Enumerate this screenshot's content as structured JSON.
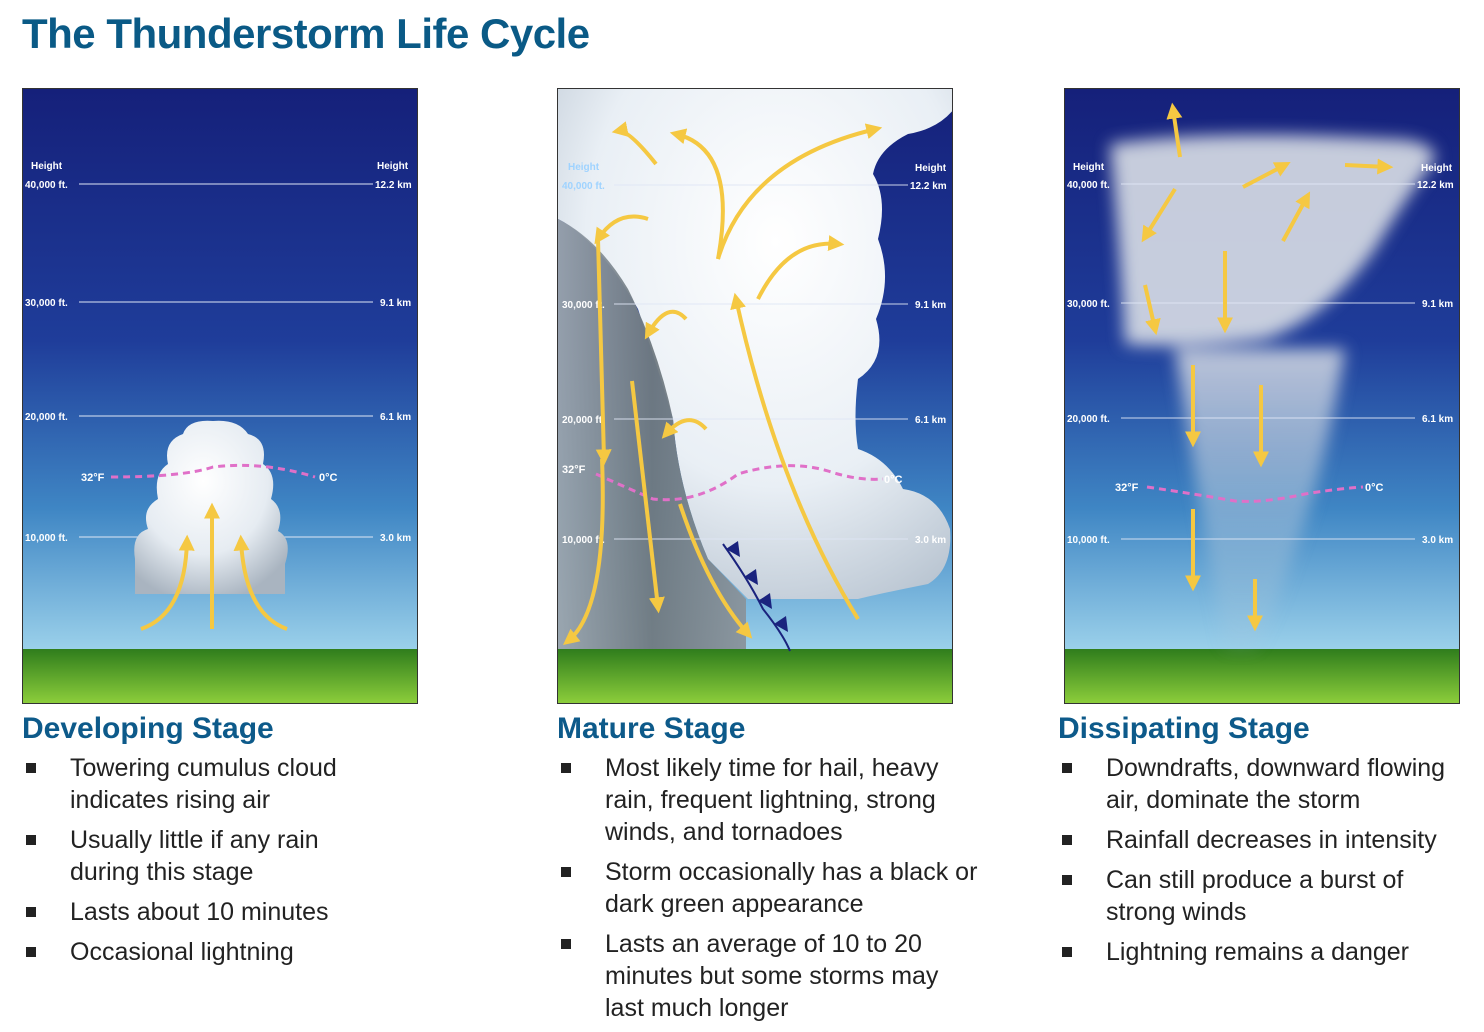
{
  "title": "The Thunderstorm Life Cycle",
  "scale": {
    "height_label": "Height",
    "left_levels": [
      "40,000 ft.",
      "30,000 ft.",
      "20,000 ft.",
      "10,000 ft."
    ],
    "right_levels": [
      "12.2 km",
      "9.1 km",
      "6.1 km",
      "3.0 km"
    ],
    "freeze_f": "32°F",
    "freeze_c": "0°C"
  },
  "stages": [
    {
      "heading": "Developing Stage",
      "bullets": [
        "Towering cumulus cloud indicates rising air",
        "Usually little if any rain during this stage",
        "Lasts about 10 minutes",
        "Occasional lightning"
      ]
    },
    {
      "heading": "Mature Stage",
      "bullets": [
        "Most likely time for hail, heavy rain, frequent lightning, strong winds, and tornadoes",
        "Storm occasionally has a black or dark green appearance",
        "Lasts an average of 10 to 20 minutes but some storms may last much longer"
      ]
    },
    {
      "heading": "Dissipating Stage",
      "bullets": [
        "Downdrafts, downward flowing air, dominate the storm",
        "Rainfall decreases in intensity",
        "Can still produce a burst of strong winds",
        "Lightning remains a danger"
      ]
    }
  ],
  "colors": {
    "title": "#0a5a86",
    "heading": "#0d5a8a",
    "arrow": "#f5c842",
    "freeze_line": "#e070c8",
    "sky_top": "#15207a",
    "sky_bottom": "#9ad0ea",
    "ground": "#5caa30"
  }
}
